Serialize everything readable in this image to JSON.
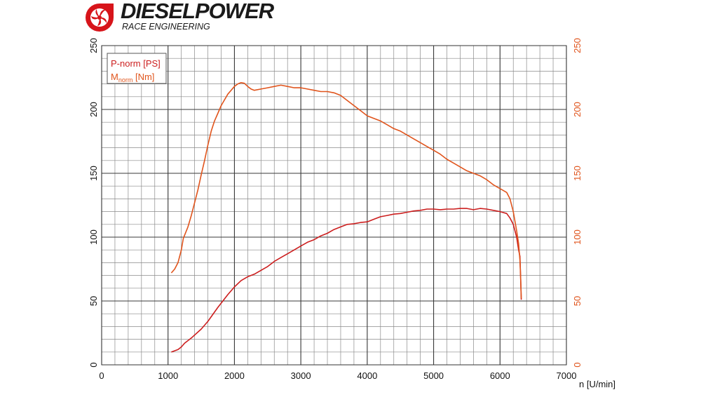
{
  "brand": {
    "name": "DIESELPOWER",
    "tagline": "RACE ENGINEERING",
    "accent_color": "#d7141a"
  },
  "chart_data": {
    "type": "line",
    "title": "",
    "xlabel": "n [U/min]",
    "xlim": [
      0,
      7000
    ],
    "ylim_left": [
      0,
      250
    ],
    "ylim_right": [
      0,
      250
    ],
    "x_ticks": [
      0,
      1000,
      2000,
      3000,
      4000,
      5000,
      6000,
      7000
    ],
    "y_ticks": [
      0,
      50,
      100,
      150,
      200,
      250
    ],
    "grid": true,
    "legend_position": "top-left",
    "series": [
      {
        "name": "P-norm [PS]",
        "axis": "left",
        "color": "#cc1e1e",
        "x": [
          1050,
          1150,
          1200,
          1250,
          1350,
          1500,
          1600,
          1750,
          1900,
          2000,
          2100,
          2200,
          2300,
          2500,
          2600,
          2700,
          2800,
          2900,
          3000,
          3100,
          3200,
          3300,
          3400,
          3500,
          3600,
          3700,
          3800,
          3900,
          4000,
          4100,
          4200,
          4300,
          4400,
          4500,
          4600,
          4700,
          4800,
          4900,
          5000,
          5100,
          5200,
          5300,
          5400,
          5500,
          5600,
          5700,
          5800,
          5900,
          6000,
          6100,
          6150,
          6200,
          6250,
          6280,
          6300,
          6310,
          6320
        ],
        "values": [
          10,
          12,
          14,
          17,
          21,
          28,
          34,
          45,
          55,
          61,
          66,
          69,
          71,
          77,
          81,
          84,
          87,
          90,
          93,
          96,
          98,
          101,
          103,
          106,
          108,
          110,
          110.5,
          111.5,
          112,
          114,
          116,
          117,
          118,
          118.5,
          119.5,
          120.5,
          121,
          122,
          122,
          121.5,
          122,
          122,
          122.5,
          122.5,
          121.5,
          122.5,
          122,
          121,
          120,
          118.5,
          115,
          110,
          100,
          90,
          85,
          70,
          51
        ]
      },
      {
        "name": "M_norm [Nm]",
        "name_main": "M",
        "name_sub": "norm",
        "name_unit": " [Nm]",
        "axis": "right",
        "color": "#e0541c",
        "x": [
          1050,
          1100,
          1150,
          1200,
          1230,
          1300,
          1350,
          1400,
          1450,
          1500,
          1550,
          1600,
          1650,
          1700,
          1750,
          1800,
          1900,
          2000,
          2050,
          2100,
          2150,
          2200,
          2250,
          2300,
          2400,
          2500,
          2600,
          2700,
          2800,
          2900,
          3000,
          3100,
          3200,
          3300,
          3400,
          3500,
          3600,
          3700,
          3800,
          3900,
          4000,
          4100,
          4200,
          4300,
          4400,
          4500,
          4600,
          4700,
          4800,
          4900,
          5000,
          5100,
          5200,
          5300,
          5400,
          5500,
          5600,
          5700,
          5800,
          5900,
          6000,
          6100,
          6150,
          6200,
          6250,
          6280,
          6300,
          6310,
          6320
        ],
        "values": [
          72,
          75,
          80,
          90,
          99,
          108,
          117,
          127,
          137,
          149,
          160,
          172,
          183,
          191,
          197,
          203,
          212,
          218,
          220,
          221,
          220.5,
          218,
          216,
          215,
          216,
          217,
          218,
          219,
          218,
          217,
          217,
          216,
          215,
          214,
          214,
          213,
          211,
          207,
          203,
          199,
          195,
          193,
          191,
          188,
          185,
          183,
          180,
          177,
          174,
          171,
          168,
          165,
          161,
          158,
          155,
          152,
          150,
          148,
          145,
          141,
          138,
          135,
          130,
          120,
          105,
          95,
          82,
          70,
          52
        ]
      }
    ]
  }
}
